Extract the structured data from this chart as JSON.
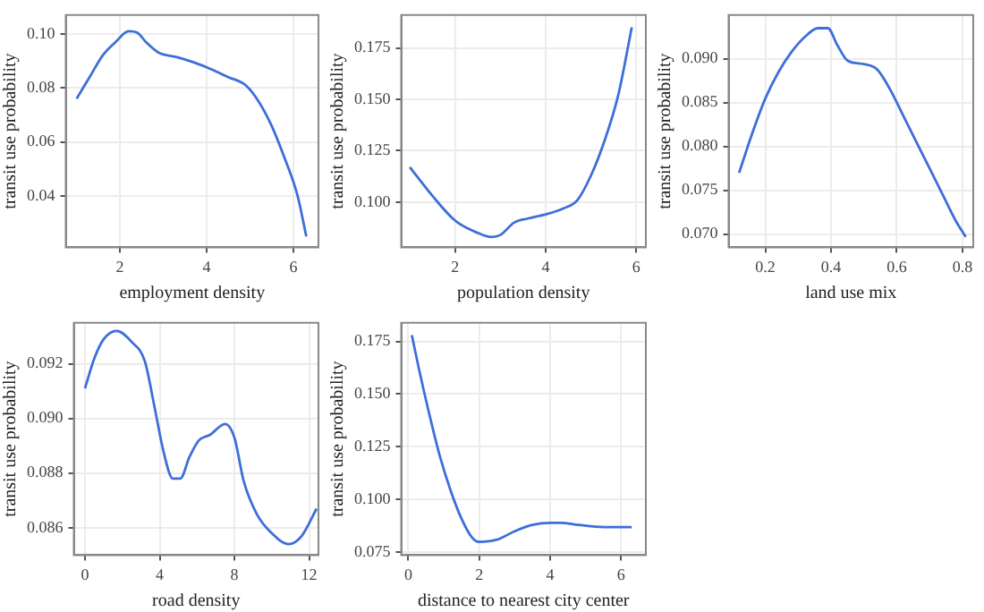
{
  "chart_data": [
    {
      "type": "line",
      "xlabel": "employment density",
      "ylabel": "transit use probability",
      "color": "#3d6fd9",
      "grid": true,
      "xlim": [
        0.75,
        6.58
      ],
      "xticks": [
        2,
        4,
        6
      ],
      "ylim": [
        0.021,
        0.107
      ],
      "yticks": [
        0.04,
        0.06,
        0.08,
        {
          "value": 0.1,
          "label": "0.10"
        }
      ],
      "x": [
        1.0,
        1.3,
        1.6,
        1.9,
        2.2,
        2.4,
        2.6,
        2.9,
        3.3,
        3.7,
        4.1,
        4.5,
        4.9,
        5.2,
        5.5,
        5.8,
        6.1,
        6.3
      ],
      "values": [
        0.076,
        0.084,
        0.092,
        0.097,
        0.101,
        0.1005,
        0.097,
        0.093,
        0.0915,
        0.0895,
        0.087,
        0.084,
        0.081,
        0.075,
        0.066,
        0.054,
        0.04,
        0.025
      ]
    },
    {
      "type": "line",
      "xlabel": "population density",
      "ylabel": "transit use probability",
      "color": "#3d6fd9",
      "grid": true,
      "xlim": [
        0.81,
        6.21
      ],
      "xticks": [
        2,
        4,
        6
      ],
      "ylim": [
        0.078,
        0.191
      ],
      "yticks": [
        {
          "value": 0.1,
          "label": "0.100"
        },
        0.125,
        {
          "value": 0.15,
          "label": "0.150"
        },
        0.175
      ],
      "x": [
        1.0,
        1.5,
        2.0,
        2.5,
        2.8,
        3.0,
        3.3,
        3.6,
        4.0,
        4.4,
        4.7,
        5.0,
        5.3,
        5.6,
        5.9
      ],
      "values": [
        0.117,
        0.103,
        0.091,
        0.085,
        0.083,
        0.084,
        0.09,
        0.092,
        0.094,
        0.097,
        0.101,
        0.113,
        0.13,
        0.152,
        0.185
      ]
    },
    {
      "type": "line",
      "xlabel": "land use mix",
      "ylabel": "transit use probability",
      "color": "#3d6fd9",
      "grid": true,
      "xlim": [
        0.088,
        0.833
      ],
      "xticks": [
        0.2,
        0.4,
        0.6,
        0.8
      ],
      "ylim": [
        0.0685,
        0.095
      ],
      "yticks": [
        {
          "value": 0.07,
          "label": "0.070"
        },
        0.075,
        {
          "value": 0.08,
          "label": "0.080"
        },
        0.085,
        {
          "value": 0.09,
          "label": "0.090"
        }
      ],
      "x": [
        0.12,
        0.16,
        0.2,
        0.24,
        0.28,
        0.32,
        0.36,
        0.39,
        0.42,
        0.45,
        0.5,
        0.54,
        0.58,
        0.62,
        0.66,
        0.7,
        0.74,
        0.78,
        0.81
      ],
      "values": [
        0.077,
        0.0815,
        0.0855,
        0.0885,
        0.0908,
        0.0925,
        0.0935,
        0.0935,
        0.0915,
        0.0898,
        0.0894,
        0.0888,
        0.0865,
        0.0835,
        0.0805,
        0.0775,
        0.0745,
        0.0715,
        0.0697
      ]
    },
    {
      "type": "line",
      "xlabel": "road density",
      "ylabel": "transit use probability",
      "color": "#3d6fd9",
      "grid": true,
      "xlim": [
        -0.6,
        12.5
      ],
      "xticks": [
        0,
        4,
        8,
        12
      ],
      "ylim": [
        0.085,
        0.0935
      ],
      "yticks": [
        0.086,
        0.088,
        {
          "value": 0.09,
          "label": "0.090"
        },
        0.092
      ],
      "x": [
        0,
        0.5,
        1,
        1.7,
        2.5,
        3.2,
        3.7,
        4.2,
        4.7,
        5.1,
        5.6,
        6.1,
        6.7,
        7.5,
        8.0,
        8.5,
        9.2,
        10,
        10.9,
        11.6,
        12.4
      ],
      "values": [
        0.0911,
        0.0922,
        0.0929,
        0.0932,
        0.0928,
        0.0921,
        0.0905,
        0.0888,
        0.0878,
        0.0878,
        0.0886,
        0.0892,
        0.0894,
        0.0898,
        0.0893,
        0.0877,
        0.0865,
        0.0858,
        0.0854,
        0.0857,
        0.0867
      ]
    },
    {
      "type": "line",
      "xlabel": "distance to nearest city center",
      "ylabel": "transit use probability",
      "color": "#3d6fd9",
      "grid": true,
      "xlim": [
        -0.2,
        6.7
      ],
      "xticks": [
        0,
        2,
        4,
        6
      ],
      "ylim": [
        0.0737,
        0.1838
      ],
      "yticks": [
        0.075,
        {
          "value": 0.1,
          "label": "0.100"
        },
        0.125,
        {
          "value": 0.15,
          "label": "0.150"
        },
        0.175
      ],
      "x": [
        0.1,
        0.3,
        0.6,
        0.9,
        1.2,
        1.5,
        1.8,
        2.0,
        2.5,
        3.0,
        3.5,
        4.0,
        4.3,
        4.8,
        5.5,
        6.3
      ],
      "values": [
        0.178,
        0.162,
        0.14,
        0.12,
        0.104,
        0.091,
        0.082,
        0.08,
        0.081,
        0.085,
        0.088,
        0.089,
        0.089,
        0.088,
        0.087,
        0.087
      ]
    }
  ]
}
